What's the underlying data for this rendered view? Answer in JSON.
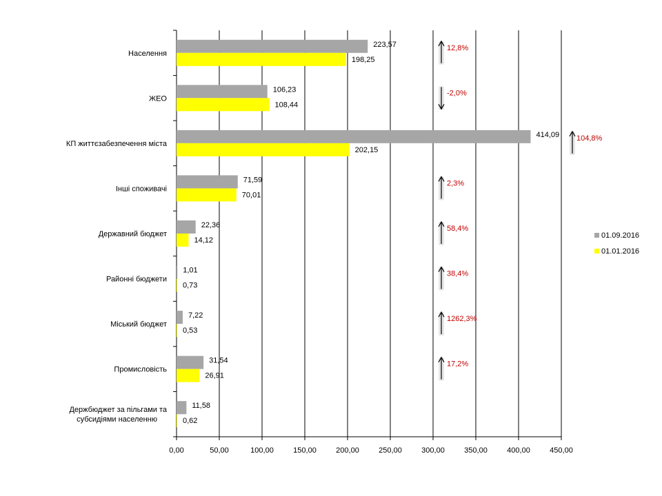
{
  "chart_data": {
    "type": "bar",
    "orientation": "horizontal",
    "title": "",
    "xlabel": "",
    "ylabel": "",
    "xlim": [
      0,
      450
    ],
    "grid": true,
    "legend_position": "right",
    "categories": [
      "Населення",
      "ЖЕО",
      "КП життєзабезпечення міста",
      "Інші споживачі",
      "Державний  бюджет",
      "Районні бюджети",
      "Міський бюджет",
      "Промисловість",
      "Держбюджет  за пільгами та субсидіями населенню"
    ],
    "series": [
      {
        "name": "01.09.2016",
        "color": "#a6a6a6",
        "values": [
          223.57,
          106.23,
          414.09,
          71.59,
          22.36,
          1.01,
          7.22,
          31.54,
          11.58
        ],
        "labels": [
          "223,57",
          "106,23",
          "414,09",
          "71,59",
          "22,36",
          "1,01",
          "7,22",
          "31,54",
          "11,58"
        ]
      },
      {
        "name": "01.01.2016",
        "color": "#ffff00",
        "values": [
          198.25,
          108.44,
          202.15,
          70.01,
          14.12,
          0.73,
          0.53,
          26.91,
          0.62
        ],
        "labels": [
          "198,25",
          "108,44",
          "202,15",
          "70,01",
          "14,12",
          "0,73",
          "0,53",
          "26,91",
          "0,62"
        ]
      }
    ],
    "x_ticks": [
      "0,00",
      "50,00",
      "100,00",
      "150,00",
      "200,00",
      "250,00",
      "300,00",
      "350,00",
      "400,00",
      "450,00"
    ],
    "changes": [
      {
        "text": "12,8%",
        "direction": "up"
      },
      {
        "text": "-2,0%",
        "direction": "down"
      },
      {
        "text": "104,8%",
        "direction": "up"
      },
      {
        "text": "2,3%",
        "direction": "up"
      },
      {
        "text": "58,4%",
        "direction": "up"
      },
      {
        "text": "38,4%",
        "direction": "up"
      },
      {
        "text": "1262,3%",
        "direction": "up"
      },
      {
        "text": "17,2%",
        "direction": "up"
      },
      null
    ],
    "annotation_color": "#c00000"
  }
}
